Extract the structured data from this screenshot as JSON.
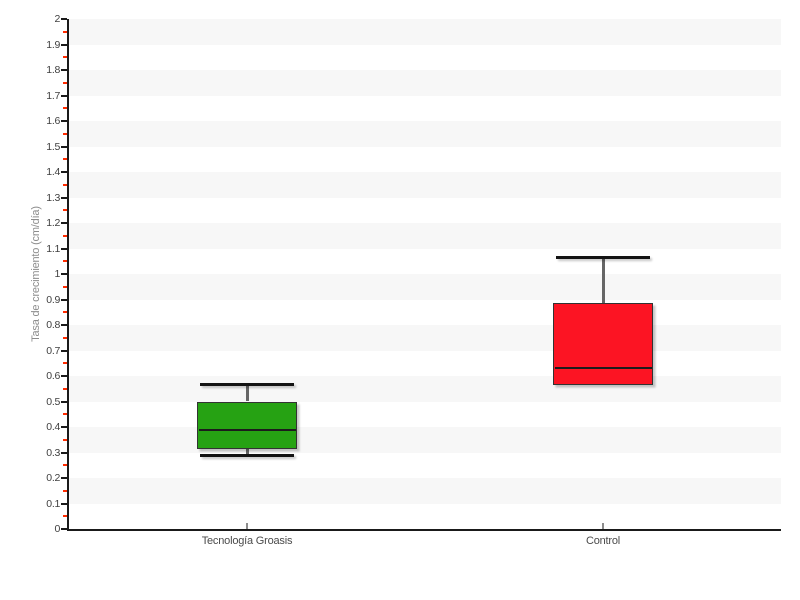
{
  "chart_data": {
    "type": "boxplot",
    "title": "",
    "xlabel": "",
    "ylabel": "Tasa de crecimiento (cm/día)",
    "ylim": [
      0,
      2
    ],
    "ytick_step": 0.1,
    "ytick_labels": [
      "0",
      "0.1",
      "0.2",
      "0.3",
      "0.4",
      "0.5",
      "0.6",
      "0.7",
      "0.8",
      "0.9",
      "1",
      "1.1",
      "1.2",
      "1.3",
      "1.4",
      "1.5",
      "1.6",
      "1.7",
      "1.8",
      "1.9",
      "2"
    ],
    "minor_tick_step": 0.05,
    "grid": "dashed",
    "legend": "none",
    "categories": [
      "Tecnología Groasis",
      "Control"
    ],
    "series": [
      {
        "name": "Tecnología Groasis",
        "box_color": "#26A213",
        "min": 0.29,
        "q1": 0.315,
        "median": 0.39,
        "q3": 0.5,
        "max": 0.565
      },
      {
        "name": "Control",
        "box_color": "#FC1423",
        "min": 0.565,
        "q1": 0.565,
        "median": 0.63,
        "q3": 0.885,
        "max": 1.065
      }
    ]
  },
  "colors": {
    "background": "#ffffff",
    "band": "#f7f7f7",
    "gridline": "#e9e9e9",
    "axis": "#1a1a1a",
    "major_tick": "#1a1a1a",
    "minor_tick": "#ff2b00",
    "ytick_label": "#3f3f3f",
    "xtick_label": "#4a4a4a",
    "xtick_mark": "#8c8c8c",
    "ylabel": "#8c8c8c",
    "whisker_stem": "#666666",
    "whisker_cap": "#141414",
    "box_border": "#333333",
    "median_line": "#1c1c1c"
  }
}
